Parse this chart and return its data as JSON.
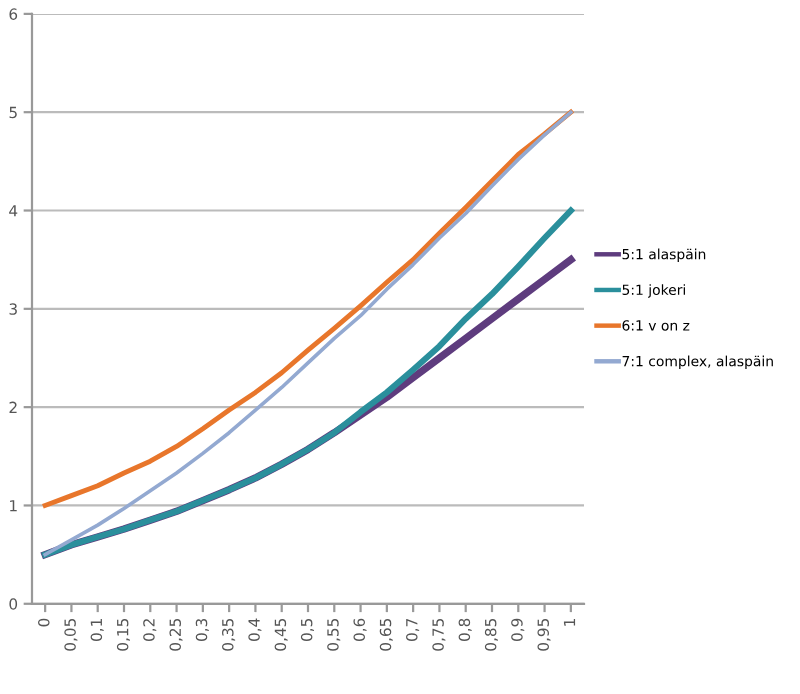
{
  "chart_data": {
    "type": "line",
    "categories": [
      "0",
      "0,05",
      "0,1",
      "0,15",
      "0,2",
      "0,25",
      "0,3",
      "0,35",
      "0,4",
      "0,45",
      "0,5",
      "0,55",
      "0,6",
      "0,65",
      "0,7",
      "0,75",
      "0,8",
      "0,85",
      "0,9",
      "0,95",
      "1"
    ],
    "series": [
      {
        "name": "5:1 alaspäin",
        "color": "#5e3c7e",
        "values": [
          0.5,
          0.6,
          0.68,
          0.76,
          0.85,
          0.94,
          1.05,
          1.16,
          1.28,
          1.42,
          1.57,
          1.74,
          1.92,
          2.1,
          2.3,
          2.5,
          2.7,
          2.9,
          3.1,
          3.3,
          3.5
        ]
      },
      {
        "name": "5:1 jokeri",
        "color": "#2a8f9c",
        "values": [
          0.5,
          0.6,
          0.68,
          0.76,
          0.85,
          0.94,
          1.05,
          1.16,
          1.28,
          1.42,
          1.57,
          1.74,
          1.95,
          2.15,
          2.38,
          2.62,
          2.9,
          3.15,
          3.43,
          3.72,
          4.0
        ]
      },
      {
        "name": "6:1 v on z",
        "color": "#e8762b",
        "values": [
          1.0,
          1.1,
          1.2,
          1.33,
          1.45,
          1.6,
          1.78,
          1.97,
          2.15,
          2.35,
          2.58,
          2.8,
          3.03,
          3.27,
          3.5,
          3.77,
          4.03,
          4.3,
          4.57,
          4.78,
          5.0
        ]
      },
      {
        "name": "7:1 complex, alaspäin",
        "color": "#93a9d1",
        "values": [
          0.5,
          0.65,
          0.8,
          0.97,
          1.15,
          1.33,
          1.53,
          1.74,
          1.97,
          2.2,
          2.45,
          2.7,
          2.93,
          3.2,
          3.45,
          3.72,
          3.97,
          4.25,
          4.52,
          4.77,
          5.0
        ]
      }
    ],
    "ylim": [
      0,
      6
    ],
    "yticks": [
      0,
      1,
      2,
      3,
      4,
      5,
      6
    ],
    "grid": "y",
    "legend": "right",
    "marker": "none",
    "line_style": "solid"
  }
}
